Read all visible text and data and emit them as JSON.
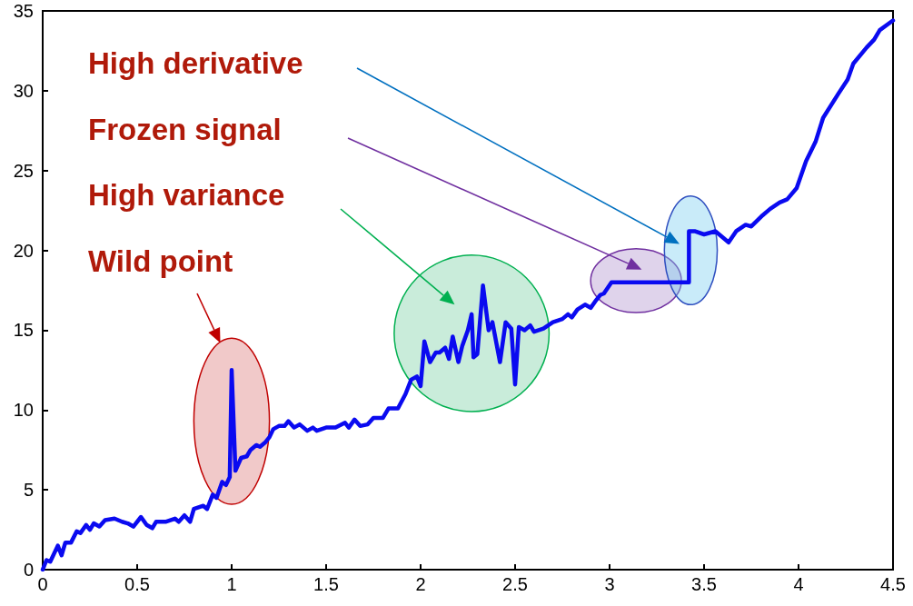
{
  "chart_data": {
    "type": "line",
    "xlim": [
      0,
      4.5
    ],
    "ylim": [
      0,
      35
    ],
    "xticks": [
      0,
      0.5,
      1,
      1.5,
      2,
      2.5,
      3,
      3.5,
      4,
      4.5
    ],
    "yticks": [
      0,
      5,
      10,
      15,
      20,
      25,
      30,
      35
    ],
    "grid": false,
    "marker": "none",
    "line_style": "solid",
    "x": [
      0,
      0.02,
      0.04,
      0.08,
      0.1,
      0.12,
      0.15,
      0.18,
      0.2,
      0.23,
      0.25,
      0.27,
      0.3,
      0.33,
      0.38,
      0.42,
      0.45,
      0.48,
      0.52,
      0.55,
      0.58,
      0.6,
      0.65,
      0.7,
      0.72,
      0.75,
      0.78,
      0.8,
      0.85,
      0.87,
      0.9,
      0.92,
      0.95,
      0.97,
      0.99,
      1.0,
      1.02,
      1.05,
      1.08,
      1.1,
      1.13,
      1.15,
      1.18,
      1.2,
      1.22,
      1.25,
      1.28,
      1.3,
      1.33,
      1.36,
      1.4,
      1.43,
      1.45,
      1.5,
      1.55,
      1.6,
      1.62,
      1.65,
      1.68,
      1.72,
      1.75,
      1.8,
      1.83,
      1.88,
      1.92,
      1.95,
      1.98,
      2.0,
      2.02,
      2.05,
      2.08,
      2.1,
      2.13,
      2.15,
      2.17,
      2.2,
      2.22,
      2.25,
      2.27,
      2.28,
      2.3,
      2.33,
      2.36,
      2.38,
      2.42,
      2.45,
      2.48,
      2.5,
      2.52,
      2.55,
      2.58,
      2.6,
      2.65,
      2.7,
      2.75,
      2.78,
      2.8,
      2.83,
      2.87,
      2.9,
      2.93,
      2.95,
      2.97,
      3.01,
      3.42,
      3.42,
      3.45,
      3.5,
      3.56,
      3.63,
      3.67,
      3.72,
      3.75,
      3.81,
      3.85,
      3.9,
      3.94,
      3.99,
      4.04,
      4.09,
      4.13,
      4.21,
      4.26,
      4.29,
      4.36,
      4.4,
      4.43,
      4.5
    ],
    "series": [
      {
        "color": "#0a0af0",
        "values": [
          0,
          0.6,
          0.5,
          1.5,
          0.9,
          1.7,
          1.7,
          2.4,
          2.3,
          2.8,
          2.5,
          2.9,
          2.7,
          3.1,
          3.2,
          3.0,
          2.9,
          2.7,
          3.3,
          2.8,
          2.6,
          3.0,
          3.0,
          3.2,
          3.0,
          3.4,
          3.0,
          3.8,
          4.0,
          3.8,
          4.7,
          4.5,
          5.5,
          5.3,
          5.8,
          12.5,
          6.2,
          7.0,
          7.1,
          7.5,
          7.8,
          7.7,
          8.0,
          8.3,
          8.8,
          9.0,
          9.0,
          9.3,
          8.9,
          9.1,
          8.7,
          8.9,
          8.7,
          8.9,
          8.9,
          9.2,
          8.9,
          9.4,
          9.0,
          9.1,
          9.5,
          9.5,
          10.1,
          10.1,
          11.0,
          11.9,
          12.1,
          11.5,
          14.3,
          13.0,
          13.6,
          13.6,
          13.9,
          13.2,
          14.6,
          13.0,
          14.0,
          15.0,
          16.0,
          13.3,
          13.5,
          17.8,
          15.0,
          15.5,
          13.0,
          15.5,
          15.1,
          11.6,
          15.2,
          15.0,
          15.3,
          14.9,
          15.1,
          15.5,
          15.7,
          16.0,
          15.8,
          16.3,
          16.6,
          16.4,
          16.9,
          17.2,
          17.3,
          18.0,
          18.0,
          21.2,
          21.2,
          21.0,
          21.2,
          20.5,
          21.2,
          21.6,
          21.5,
          22.2,
          22.6,
          23.0,
          23.2,
          23.9,
          25.6,
          26.8,
          28.3,
          29.8,
          30.7,
          31.7,
          32.7,
          33.2,
          33.8,
          34.4
        ]
      }
    ],
    "annotations": [
      "High derivative",
      "Frozen signal",
      "High variance",
      "Wild point"
    ]
  }
}
